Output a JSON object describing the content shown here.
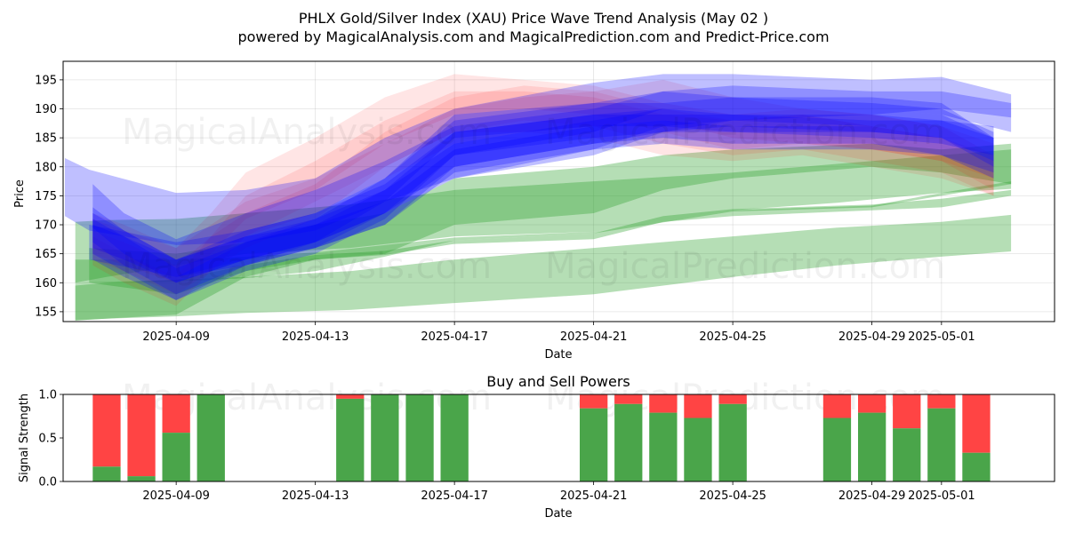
{
  "chart_data": [
    {
      "type": "area",
      "title_line1": "PHLX Gold/Silver Index (XAU) Price Wave Trend Analysis (May 02 )",
      "title_line2": "powered by MagicalAnalysis.com and MagicalPrediction.com and Predict-Price.com",
      "xlabel": "Date",
      "ylabel": "Price",
      "ylim": [
        153.3,
        198.2
      ],
      "xlim": [
        -3.25,
        25.25
      ],
      "grid": true,
      "x_ticks": [
        {
          "label": "2025-04-09",
          "x": 0
        },
        {
          "label": "2025-04-13",
          "x": 4
        },
        {
          "label": "2025-04-17",
          "x": 8
        },
        {
          "label": "2025-04-21",
          "x": 12
        },
        {
          "label": "2025-04-25",
          "x": 16
        },
        {
          "label": "2025-04-29",
          "x": 20
        },
        {
          "label": "2025-05-01",
          "x": 22
        }
      ],
      "y_ticks": [
        155,
        160,
        165,
        170,
        175,
        180,
        185,
        190,
        195
      ],
      "watermarks": [
        "MagicalAnalysis.com",
        "MagicalPrediction.com"
      ],
      "bands": [
        {
          "color": "#2ca02c",
          "opacity": 0.35,
          "x": [
            -2.9,
            -2,
            0,
            2,
            5,
            8,
            12,
            16,
            19,
            22,
            24
          ],
          "lower": [
            153.5,
            153.8,
            154.2,
            154.8,
            155.3,
            156.5,
            158,
            161,
            163,
            164.5,
            165.4
          ],
          "upper": [
            159.5,
            160,
            160.5,
            161,
            162,
            164,
            166,
            168,
            169.5,
            170.5,
            171.7
          ]
        },
        {
          "color": "#2ca02c",
          "opacity": 0.35,
          "x": [
            -2.9,
            -2,
            0,
            2,
            5,
            8,
            12,
            16,
            19,
            22,
            24
          ],
          "lower": [
            160,
            161,
            163,
            165,
            166,
            168,
            168.8,
            172.5,
            173.8,
            175.5,
            176.2
          ],
          "upper": [
            170.5,
            170.8,
            171,
            172,
            173.5,
            176,
            177.5,
            179,
            180.5,
            182,
            183
          ]
        },
        {
          "color": "#2ca02c",
          "opacity": 0.35,
          "x": [
            -2.9,
            0,
            2,
            4,
            6,
            8,
            12,
            16,
            20,
            22,
            24
          ],
          "lower": [
            160,
            160.2,
            160.8,
            162,
            164.5,
            167.3,
            168.5,
            172.3,
            173,
            175,
            177
          ],
          "upper": [
            164,
            164,
            164.5,
            165.2,
            166.5,
            167.8,
            168.8,
            172.5,
            173.3,
            175.5,
            177.5
          ]
        },
        {
          "color": "#2ca02c",
          "opacity": 0.35,
          "x": [
            -2.9,
            0,
            2,
            4,
            6,
            8,
            12,
            14,
            16,
            20,
            22,
            24
          ],
          "lower": [
            153.5,
            154.5,
            161,
            164,
            164.8,
            166.7,
            167.5,
            170.5,
            171.5,
            172.5,
            173,
            175
          ],
          "upper": [
            160,
            160.5,
            163,
            164.8,
            165.5,
            167.3,
            168.5,
            171.5,
            172.7,
            173.5,
            174.5,
            176
          ]
        },
        {
          "color": "#2ca02c",
          "opacity": 0.35,
          "x": [
            -2.5,
            0,
            2,
            4,
            6,
            8,
            12,
            14,
            16,
            20,
            22,
            24
          ],
          "lower": [
            160,
            158,
            162,
            164,
            165,
            170,
            172,
            176,
            178,
            180,
            179,
            177
          ],
          "upper": [
            166,
            165,
            167,
            170,
            172,
            178,
            180,
            182,
            183,
            184,
            183,
            184
          ]
        },
        {
          "color": "#ff0000",
          "opacity": 0.1,
          "x": [
            -2.4,
            -1.5,
            0,
            1,
            2,
            4,
            6,
            8,
            10,
            12,
            14,
            16,
            18,
            20,
            22,
            23.5
          ],
          "lower": [
            164,
            162,
            158,
            162,
            168,
            174,
            180,
            186,
            186,
            185,
            182,
            181,
            182,
            180,
            178,
            175
          ],
          "upper": [
            169,
            167,
            163,
            168,
            175,
            181,
            188,
            193,
            193,
            192,
            189,
            188,
            189,
            187,
            185,
            182
          ]
        },
        {
          "color": "#ff0000",
          "opacity": 0.1,
          "x": [
            -2.4,
            -1.5,
            0,
            1,
            2,
            4,
            6,
            8,
            10,
            12,
            14,
            16,
            18,
            20,
            22,
            23.5
          ],
          "lower": [
            165,
            163,
            160,
            165,
            171,
            176,
            184,
            189,
            190,
            189,
            186,
            183,
            184,
            183,
            181,
            178
          ],
          "upper": [
            171,
            169,
            166,
            172,
            179,
            185,
            192,
            196,
            195,
            194,
            191,
            189,
            190,
            189,
            187,
            184
          ]
        },
        {
          "color": "#ff0000",
          "opacity": 0.1,
          "x": [
            -2.4,
            -1.5,
            0,
            1,
            2,
            4,
            6,
            8,
            10,
            12,
            14,
            16,
            18,
            20,
            22,
            23.5
          ],
          "lower": [
            166,
            164,
            161,
            164,
            168,
            172,
            178,
            184,
            186,
            187,
            188,
            185,
            184,
            183,
            181,
            176
          ],
          "upper": [
            172,
            170,
            166,
            170,
            174,
            178,
            184,
            190,
            192,
            193,
            195,
            192,
            190,
            189,
            187,
            182
          ]
        },
        {
          "color": "#ff0000",
          "opacity": 0.1,
          "x": [
            -2.4,
            -1.5,
            0,
            1,
            2,
            4,
            6,
            8,
            10,
            12,
            14,
            16,
            18,
            20,
            22,
            23.5
          ],
          "lower": [
            163,
            160,
            156,
            162,
            166,
            171,
            180,
            186,
            188,
            187,
            184,
            182,
            183,
            181,
            179,
            175
          ],
          "upper": [
            168,
            165,
            161,
            168,
            172,
            177,
            186,
            192,
            194,
            193,
            190,
            188,
            189,
            187,
            185,
            181
          ]
        },
        {
          "color": "#0000ff",
          "opacity": 0.25,
          "x": [
            -3.2,
            -2.5,
            0,
            2,
            4,
            6,
            8,
            12,
            14,
            16,
            20,
            22,
            24
          ],
          "lower": [
            171.5,
            169,
            166.5,
            167,
            169,
            174,
            178,
            182,
            186,
            188,
            189,
            190,
            188.5
          ],
          "upper": [
            181.5,
            179.5,
            175.5,
            176,
            178,
            185,
            190,
            194.5,
            196,
            196,
            195,
            195.5,
            192.5
          ]
        },
        {
          "color": "#0000ff",
          "opacity": 0.25,
          "x": [
            -2.4,
            -1.5,
            0,
            2,
            4,
            6,
            8,
            12,
            14,
            16,
            20,
            22,
            23.5
          ],
          "lower": [
            169.5,
            165,
            161,
            164,
            167,
            172,
            178,
            183,
            187,
            186,
            186,
            185,
            180
          ],
          "upper": [
            177,
            172,
            167.5,
            172,
            176,
            181,
            187,
            190,
            193,
            192,
            192,
            191,
            185
          ]
        },
        {
          "color": "#0000ff",
          "opacity": 0.25,
          "x": [
            -2.4,
            -1.5,
            0,
            2,
            4,
            6,
            8,
            12,
            14,
            16,
            20,
            22,
            23.5
          ],
          "lower": [
            167,
            163,
            158,
            163,
            166,
            170,
            180,
            184,
            185,
            184,
            184,
            182,
            179
          ],
          "upper": [
            173,
            169,
            164,
            169,
            172,
            177,
            186,
            189,
            190,
            189,
            189,
            188,
            185
          ]
        },
        {
          "color": "#0000ff",
          "opacity": 0.25,
          "x": [
            -2.4,
            -1.5,
            0,
            2,
            4,
            6,
            8,
            12,
            14,
            16,
            20,
            22,
            23.5
          ],
          "lower": [
            165,
            162,
            157,
            162,
            165,
            171,
            182,
            185,
            186,
            186,
            185,
            184,
            182
          ],
          "upper": [
            171,
            168,
            162.5,
            167,
            170,
            176,
            186,
            189,
            189,
            189,
            188,
            188,
            187
          ]
        },
        {
          "color": "#0000ff",
          "opacity": 0.25,
          "x": [
            -2.4,
            -1.5,
            0,
            2,
            4,
            6,
            8,
            12,
            14,
            16,
            20,
            22,
            23.5
          ],
          "lower": [
            166,
            164,
            160,
            164,
            167,
            172,
            180,
            184,
            186,
            187,
            186,
            185,
            181
          ],
          "upper": [
            170,
            168,
            164,
            168,
            171,
            176,
            184,
            188,
            190,
            191,
            190,
            189,
            185
          ]
        },
        {
          "color": "#0000ff",
          "opacity": 0.25,
          "x": [
            -2.4,
            -1.5,
            0,
            2,
            4,
            6,
            8,
            12,
            14,
            16,
            20,
            22,
            23.5
          ],
          "lower": [
            164,
            161,
            157,
            163,
            167,
            174,
            185,
            187,
            187,
            188,
            187,
            186,
            182
          ],
          "upper": [
            168,
            165,
            161,
            167,
            171,
            178,
            189,
            191,
            191,
            192,
            191,
            190,
            186
          ]
        },
        {
          "color": "#0000ff",
          "opacity": 0.25,
          "x": [
            -2.4,
            -1.5,
            0,
            2,
            4,
            6,
            8,
            12,
            14,
            16,
            20,
            22,
            23.5
          ],
          "lower": [
            168,
            165,
            160,
            164,
            166,
            170,
            179,
            183,
            184,
            183,
            183,
            182,
            178
          ],
          "upper": [
            172,
            169,
            164,
            168,
            170,
            174,
            183,
            187,
            188,
            187,
            187,
            186,
            182
          ]
        },
        {
          "color": "#0000ff",
          "opacity": 0.25,
          "x": [
            -2.5,
            0,
            2,
            4,
            6,
            8,
            12,
            14,
            16,
            20,
            22,
            24
          ],
          "lower": [
            164,
            161,
            163,
            166,
            172,
            182,
            186,
            190,
            191,
            190,
            189,
            186
          ],
          "upper": [
            170,
            167,
            169,
            172,
            178,
            188,
            191,
            193,
            194,
            193,
            193,
            191
          ]
        }
      ]
    },
    {
      "type": "bar",
      "title": "Buy and Sell Powers",
      "xlabel": "Date",
      "ylabel": "Signal Strength",
      "ylim": [
        0,
        1.0
      ],
      "xlim": [
        -3.25,
        25.25
      ],
      "y_ticks": [
        "0.0",
        "0.5",
        "1.0"
      ],
      "x_ticks": [
        {
          "label": "2025-04-09",
          "x": 0
        },
        {
          "label": "2025-04-13",
          "x": 4
        },
        {
          "label": "2025-04-17",
          "x": 8
        },
        {
          "label": "2025-04-21",
          "x": 12
        },
        {
          "label": "2025-04-25",
          "x": 16
        },
        {
          "label": "2025-04-29",
          "x": 20
        },
        {
          "label": "2025-05-01",
          "x": 22
        }
      ],
      "colors": {
        "buy": "#4aa54a",
        "sell": "#ff4444"
      },
      "series": [
        {
          "x": -2,
          "buy": 0.17
        },
        {
          "x": -1,
          "buy": 0.06
        },
        {
          "x": 0,
          "buy": 0.56
        },
        {
          "x": 1,
          "buy": 1.0
        },
        {
          "x": 5,
          "buy": 0.95
        },
        {
          "x": 6,
          "buy": 1.0
        },
        {
          "x": 7,
          "buy": 1.0
        },
        {
          "x": 8,
          "buy": 1.0
        },
        {
          "x": 12,
          "buy": 0.84
        },
        {
          "x": 13,
          "buy": 0.89
        },
        {
          "x": 14,
          "buy": 0.79
        },
        {
          "x": 15,
          "buy": 0.73
        },
        {
          "x": 16,
          "buy": 0.89
        },
        {
          "x": 19,
          "buy": 0.73
        },
        {
          "x": 20,
          "buy": 0.79
        },
        {
          "x": 21,
          "buy": 0.61
        },
        {
          "x": 22,
          "buy": 0.84
        },
        {
          "x": 23,
          "buy": 0.33
        }
      ]
    }
  ]
}
